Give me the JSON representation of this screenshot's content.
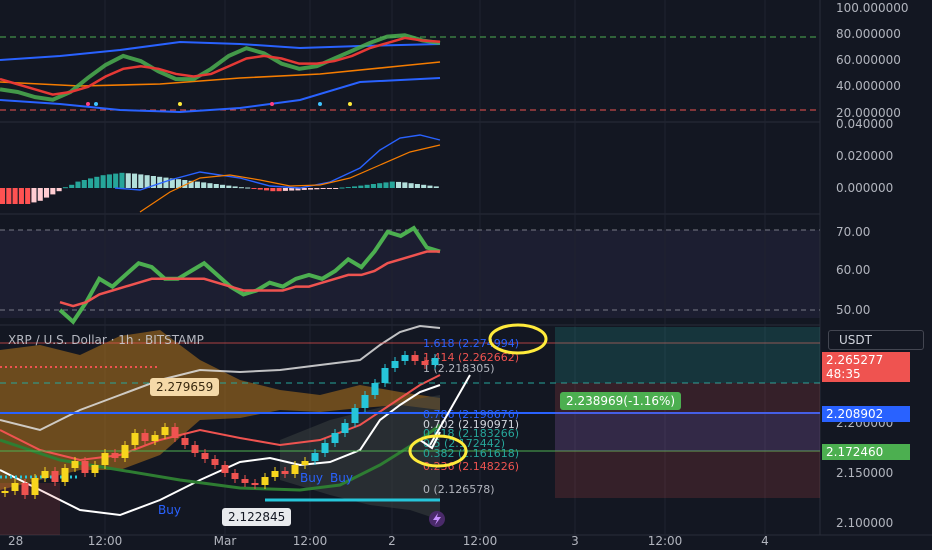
{
  "header": {
    "title": "XRP / U.S. Dollar · 1h · BITSTAMP",
    "currency": "USDT"
  },
  "price_tags": {
    "current": "2.265277",
    "countdown": "48:35",
    "blue": "2.208902",
    "green": "2.172460"
  },
  "notes": {
    "top_left_value": "2.279659",
    "bottom_value": "2.122845",
    "position_box": "2.238969(-1.16%)",
    "buy_labels": [
      "Buy",
      "Buy",
      "Buy"
    ]
  },
  "colors": {
    "background": "#131722",
    "bull": "#f7d51d",
    "bear": "#ef5350",
    "rising": "#26c6da",
    "fib_up": "#26a69a"
  },
  "chart_data": [
    {
      "type": "line",
      "title": "",
      "x": [
        0,
        1,
        2,
        3,
        4,
        5,
        6,
        7,
        8,
        9,
        10,
        11,
        12,
        13,
        14,
        15,
        16,
        17,
        18,
        19,
        20,
        21,
        22,
        23,
        24,
        25
      ],
      "series": [
        {
          "values": [
            36,
            34,
            30,
            28,
            34,
            45,
            55,
            62,
            58,
            50,
            44,
            44,
            52,
            62,
            68,
            64,
            56,
            52,
            54,
            60,
            66,
            72,
            77,
            78,
            74,
            72
          ]
        },
        {
          "values": [
            44,
            40,
            36,
            32,
            34,
            38,
            46,
            52,
            54,
            52,
            48,
            46,
            48,
            54,
            60,
            62,
            60,
            56,
            56,
            58,
            62,
            68,
            72,
            76,
            74,
            73
          ]
        }
      ],
      "y_axis_ticks": [
        "100.000000",
        "80.000000",
        "60.000000",
        "40.000000",
        "20.000000"
      ],
      "ylim": [
        20,
        100
      ],
      "reference_levels": [
        80,
        25
      ]
    },
    {
      "type": "bar",
      "title": "",
      "categories": [
        0,
        1,
        2,
        3,
        4,
        5,
        6,
        7,
        8,
        9,
        10,
        11,
        12,
        13,
        14,
        15,
        16,
        17,
        18,
        19,
        20,
        21,
        22,
        23,
        24,
        25,
        26,
        27,
        28,
        29,
        30,
        31,
        32,
        33,
        34,
        35,
        36,
        37,
        38,
        39,
        40,
        41,
        42,
        43,
        44,
        45,
        46,
        47,
        48,
        49,
        50,
        51,
        52,
        53,
        54,
        55,
        56,
        57,
        58,
        59,
        60,
        61,
        62,
        63,
        64,
        65,
        66,
        67,
        68,
        69
      ],
      "values": [
        -0.01,
        -0.01,
        -0.01,
        -0.01,
        -0.01,
        -0.009,
        -0.008,
        -0.006,
        -0.004,
        -0.002,
        0.0005,
        0.002,
        0.004,
        0.005,
        0.006,
        0.007,
        0.008,
        0.0085,
        0.009,
        0.0095,
        0.0092,
        0.009,
        0.0085,
        0.008,
        0.0075,
        0.007,
        0.0065,
        0.006,
        0.0055,
        0.005,
        0.0045,
        0.004,
        0.0035,
        0.003,
        0.0025,
        0.002,
        0.0015,
        0.001,
        0.0005,
        0.0003,
        -0.0005,
        -0.001,
        -0.0015,
        -0.002,
        -0.002,
        -0.0018,
        -0.0016,
        -0.0015,
        -0.0012,
        -0.001,
        -0.0008,
        -0.0006,
        -0.0004,
        -0.0002,
        0.0003,
        0.0006,
        0.001,
        0.0015,
        0.002,
        0.0025,
        0.003,
        0.0035,
        0.004,
        0.0038,
        0.0035,
        0.003,
        0.0025,
        0.002,
        0.0015,
        0.001
      ],
      "y_axis_ticks": [
        "0.040000",
        "0.020000",
        "0.000000"
      ],
      "ylim": [
        -0.012,
        0.04
      ]
    },
    {
      "type": "line",
      "title": "",
      "x": [
        0,
        1,
        2,
        3,
        4,
        5,
        6,
        7,
        8,
        9,
        10,
        11,
        12,
        13,
        14,
        15,
        16,
        17,
        18,
        19,
        20,
        21,
        22,
        23,
        24,
        25,
        26,
        27,
        28,
        29
      ],
      "series": [
        {
          "values": [
            50,
            47,
            52,
            58,
            56,
            59,
            62,
            61,
            58,
            58,
            60,
            62,
            59,
            56,
            54,
            55,
            57,
            56,
            58,
            59,
            58,
            60,
            63,
            61,
            65,
            70,
            69,
            71,
            66,
            65
          ]
        },
        {
          "values": [
            52,
            51,
            52,
            54,
            55,
            56,
            57,
            58,
            58,
            58,
            58,
            58,
            57,
            56,
            55,
            55,
            55,
            55,
            56,
            56,
            57,
            58,
            59,
            59,
            60,
            62,
            63,
            64,
            65,
            65
          ]
        }
      ],
      "y_axis_ticks": [
        "70.00",
        "60.00",
        "50.00"
      ],
      "ylim": [
        47,
        72
      ]
    },
    {
      "type": "bar",
      "title": "XRP / U.S. Dollar · 1h · BITSTAMP",
      "subtype": "candlestick",
      "y_axis_ticks": [
        "2.200000",
        "2.150000",
        "2.100000"
      ],
      "ylim": [
        2.09,
        2.3
      ],
      "x_axis_ticks": [
        "28",
        "12:00",
        "Mar",
        "12:00",
        "2",
        "12:00",
        "3",
        "12:00",
        "4"
      ],
      "fibonacci_levels": [
        {
          "label": "1.618 (2.274994)",
          "value": 2.274994
        },
        {
          "label": "1.414 (2.262662)",
          "value": 2.262662
        },
        {
          "label": "1 (2.218305)",
          "value": 2.218305
        },
        {
          "label": "0.786 (2.198676)",
          "value": 2.198676
        },
        {
          "label": "0.702 (2.190971)",
          "value": 2.190971
        },
        {
          "label": "0.618 (2.183266)",
          "value": 2.183266
        },
        {
          "label": "0.5 (2.172442)",
          "value": 2.172442
        },
        {
          "label": "0.382 (2.161618)",
          "value": 2.161618
        },
        {
          "label": "0.236 (2.148226)",
          "value": 2.148226
        },
        {
          "label": "0 (2.126578)",
          "value": 2.126578
        }
      ],
      "candles_close": [
        2.132,
        2.14,
        2.128,
        2.145,
        2.152,
        2.141,
        2.155,
        2.162,
        2.15,
        2.158,
        2.17,
        2.165,
        2.178,
        2.19,
        2.182,
        2.188,
        2.196,
        2.185,
        2.178,
        2.17,
        2.164,
        2.158,
        2.15,
        2.144,
        2.14,
        2.138,
        2.146,
        2.152,
        2.149,
        2.158,
        2.162,
        2.17,
        2.18,
        2.19,
        2.2,
        2.215,
        2.228,
        2.24,
        2.255,
        2.262,
        2.268,
        2.262,
        2.258,
        2.265
      ]
    }
  ]
}
